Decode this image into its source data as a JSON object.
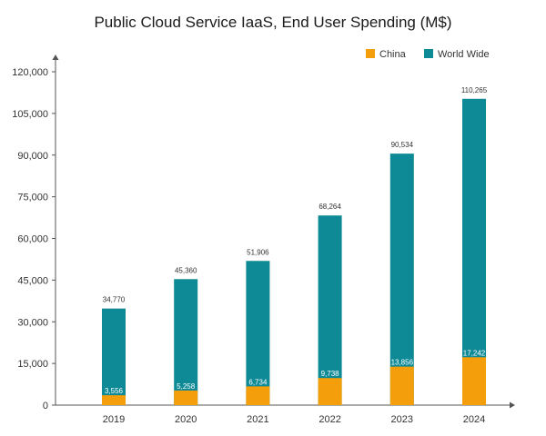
{
  "chart_data": {
    "type": "bar",
    "title": "Public Cloud Service IaaS, End User Spending (M$)",
    "xlabel": "",
    "ylabel": "",
    "categories": [
      "2019",
      "2020",
      "2021",
      "2022",
      "2023",
      "2024"
    ],
    "series": [
      {
        "name": "China",
        "values": [
          3556,
          5258,
          6734,
          9738,
          13856,
          17242
        ],
        "labels": [
          "3,556",
          "5,258",
          "6,734",
          "9,738",
          "13,856",
          "17,242"
        ],
        "color": "#F59E0B"
      },
      {
        "name": "World Wide",
        "values": [
          34770,
          45360,
          51906,
          68264,
          90534,
          110265
        ],
        "labels": [
          "34,770",
          "45,360",
          "51,906",
          "68,264",
          "90,534",
          "110,265"
        ],
        "color": "#0E8A96"
      }
    ],
    "ylim": [
      0,
      120000
    ],
    "yticks": [
      0,
      15000,
      30000,
      45000,
      60000,
      75000,
      90000,
      105000,
      120000
    ],
    "ytick_labels": [
      "0",
      "15,000",
      "30,000",
      "45,000",
      "60,000",
      "75,000",
      "90,000",
      "105,000",
      "120,000"
    ],
    "grid": false,
    "legend_position": "top-right",
    "axis_color": "#555555"
  }
}
